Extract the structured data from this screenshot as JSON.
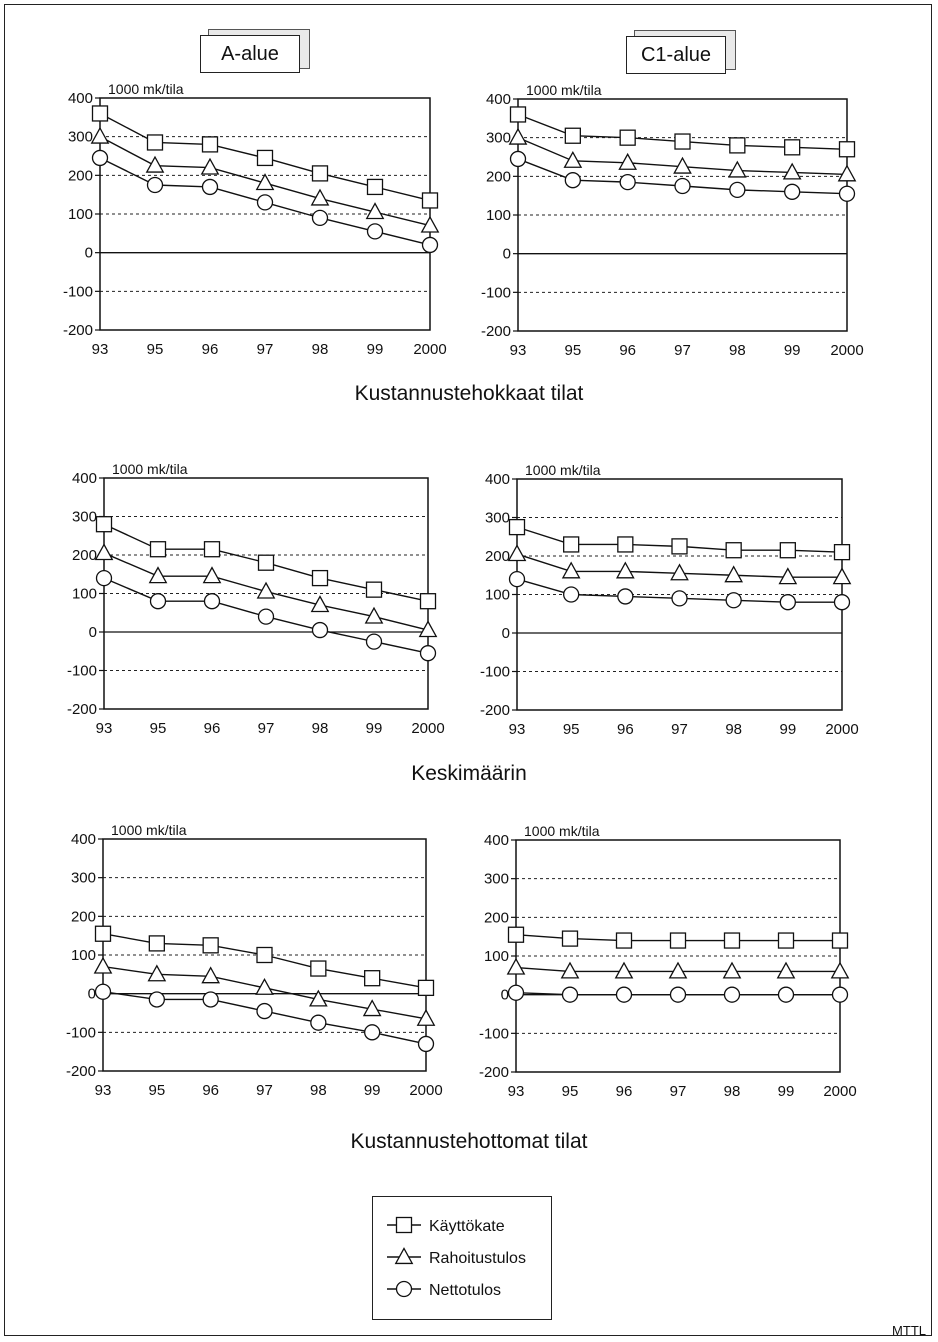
{
  "area_labels": {
    "a": "A-alue",
    "c1": "C1-alue"
  },
  "section_titles": [
    "Kustannustehokkaat tilat",
    "Keskimäärin",
    "Kustannustehottomat tilat"
  ],
  "source": "MTTL",
  "legend": [
    "Käyttökate",
    "Rahoitustulos",
    "Nettotulos"
  ],
  "chart_data": [
    {
      "type": "line",
      "panel": "A-alue / Kustannustehokkaat tilat",
      "ylabel": "1000 mk/tila",
      "ylim": [
        -200,
        400
      ],
      "yticks": [
        -200,
        -100,
        0,
        100,
        200,
        300,
        400
      ],
      "categories": [
        "93",
        "95",
        "96",
        "97",
        "98",
        "99",
        "2000"
      ],
      "series": [
        {
          "name": "Käyttökate",
          "marker": "square",
          "values": [
            360,
            285,
            280,
            245,
            205,
            170,
            135
          ]
        },
        {
          "name": "Rahoitustulos",
          "marker": "triangle",
          "values": [
            300,
            225,
            220,
            180,
            140,
            105,
            70
          ]
        },
        {
          "name": "Nettotulos",
          "marker": "circle",
          "values": [
            245,
            175,
            170,
            130,
            90,
            55,
            20
          ]
        }
      ]
    },
    {
      "type": "line",
      "panel": "C1-alue / Kustannustehokkaat tilat",
      "ylabel": "1000 mk/tila",
      "ylim": [
        -200,
        400
      ],
      "yticks": [
        -200,
        -100,
        0,
        100,
        200,
        300,
        400
      ],
      "categories": [
        "93",
        "95",
        "96",
        "97",
        "98",
        "99",
        "2000"
      ],
      "series": [
        {
          "name": "Käyttökate",
          "marker": "square",
          "values": [
            360,
            305,
            300,
            290,
            280,
            275,
            270
          ]
        },
        {
          "name": "Rahoitustulos",
          "marker": "triangle",
          "values": [
            300,
            240,
            235,
            225,
            215,
            210,
            205
          ]
        },
        {
          "name": "Nettotulos",
          "marker": "circle",
          "values": [
            245,
            190,
            185,
            175,
            165,
            160,
            155
          ]
        }
      ]
    },
    {
      "type": "line",
      "panel": "A-alue / Keskimäärin",
      "ylabel": "1000 mk/tila",
      "ylim": [
        -200,
        400
      ],
      "yticks": [
        -200,
        -100,
        0,
        100,
        200,
        300,
        400
      ],
      "categories": [
        "93",
        "95",
        "96",
        "97",
        "98",
        "99",
        "2000"
      ],
      "series": [
        {
          "name": "Käyttökate",
          "marker": "square",
          "values": [
            280,
            215,
            215,
            180,
            140,
            110,
            80
          ]
        },
        {
          "name": "Rahoitustulos",
          "marker": "triangle",
          "values": [
            205,
            145,
            145,
            105,
            70,
            40,
            5
          ]
        },
        {
          "name": "Nettotulos",
          "marker": "circle",
          "values": [
            140,
            80,
            80,
            40,
            5,
            -25,
            -55
          ]
        }
      ]
    },
    {
      "type": "line",
      "panel": "C1-alue / Keskimäärin",
      "ylabel": "1000 mk/tila",
      "ylim": [
        -200,
        400
      ],
      "yticks": [
        -200,
        -100,
        0,
        100,
        200,
        300,
        400
      ],
      "categories": [
        "93",
        "95",
        "96",
        "97",
        "98",
        "99",
        "2000"
      ],
      "series": [
        {
          "name": "Käyttökate",
          "marker": "square",
          "values": [
            275,
            230,
            230,
            225,
            215,
            215,
            210
          ]
        },
        {
          "name": "Rahoitustulos",
          "marker": "triangle",
          "values": [
            205,
            160,
            160,
            155,
            150,
            145,
            145
          ]
        },
        {
          "name": "Nettotulos",
          "marker": "circle",
          "values": [
            140,
            100,
            95,
            90,
            85,
            80,
            80
          ]
        }
      ]
    },
    {
      "type": "line",
      "panel": "A-alue / Kustannustehottomat tilat",
      "ylabel": "1000 mk/tila",
      "ylim": [
        -200,
        400
      ],
      "yticks": [
        -200,
        -100,
        0,
        100,
        200,
        300,
        400
      ],
      "categories": [
        "93",
        "95",
        "96",
        "97",
        "98",
        "99",
        "2000"
      ],
      "series": [
        {
          "name": "Käyttökate",
          "marker": "square",
          "values": [
            155,
            130,
            125,
            100,
            65,
            40,
            15
          ]
        },
        {
          "name": "Rahoitustulos",
          "marker": "triangle",
          "values": [
            70,
            50,
            45,
            15,
            -15,
            -40,
            -65
          ]
        },
        {
          "name": "Nettotulos",
          "marker": "circle",
          "values": [
            5,
            -15,
            -15,
            -45,
            -75,
            -100,
            -130
          ]
        }
      ]
    },
    {
      "type": "line",
      "panel": "C1-alue / Kustannustehottomat tilat",
      "ylabel": "1000 mk/tila",
      "ylim": [
        -200,
        400
      ],
      "yticks": [
        -200,
        -100,
        0,
        100,
        200,
        300,
        400
      ],
      "categories": [
        "93",
        "95",
        "96",
        "97",
        "98",
        "99",
        "2000"
      ],
      "series": [
        {
          "name": "Käyttökate",
          "marker": "square",
          "values": [
            155,
            145,
            140,
            140,
            140,
            140,
            140
          ]
        },
        {
          "name": "Rahoitustulos",
          "marker": "triangle",
          "values": [
            70,
            60,
            60,
            60,
            60,
            60,
            60
          ]
        },
        {
          "name": "Nettotulos",
          "marker": "circle",
          "values": [
            5,
            0,
            0,
            0,
            0,
            0,
            0
          ]
        }
      ]
    }
  ]
}
